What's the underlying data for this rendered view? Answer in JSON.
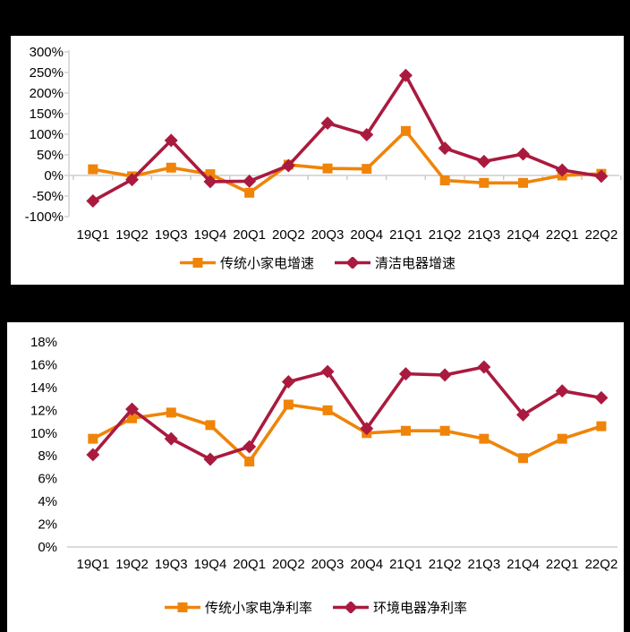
{
  "colors": {
    "background": "#000000",
    "panel": "#FFFFFF",
    "axis_line": "#D6D4D4",
    "tick_line": "#C9C7C7",
    "text": "#000000",
    "orange_series": "#EF8409",
    "crimson_series": "#AA1A3F"
  },
  "chart_data": [
    {
      "id": "growth-chart",
      "type": "line",
      "title": "",
      "categories": [
        "19Q1",
        "19Q2",
        "19Q3",
        "19Q4",
        "20Q1",
        "20Q2",
        "20Q3",
        "20Q4",
        "21Q1",
        "21Q2",
        "21Q3",
        "21Q4",
        "22Q1",
        "22Q2"
      ],
      "y_tick_labels": [
        "300%",
        "250%",
        "200%",
        "150%",
        "100%",
        "50%",
        "0%",
        "-50%",
        "-100%"
      ],
      "ylim": [
        -100,
        300
      ],
      "y_tick_step": 50,
      "grid": false,
      "legend_position": "bottom",
      "series": [
        {
          "name": "传统小家电增速",
          "marker": "square",
          "color": "#EF8409",
          "values": [
            15,
            -2,
            19,
            3,
            -42,
            26,
            17,
            16,
            108,
            -12,
            -18,
            -18,
            0,
            4
          ]
        },
        {
          "name": "清洁电器增速",
          "marker": "diamond",
          "color": "#AA1A3F",
          "values": [
            -62,
            -10,
            85,
            -15,
            -14,
            24,
            127,
            99,
            243,
            66,
            34,
            52,
            13,
            -2
          ]
        }
      ]
    },
    {
      "id": "net-margin-chart",
      "type": "line",
      "title": "",
      "categories": [
        "19Q1",
        "19Q2",
        "19Q3",
        "19Q4",
        "20Q1",
        "20Q2",
        "20Q3",
        "20Q4",
        "21Q1",
        "21Q2",
        "21Q3",
        "21Q4",
        "22Q1",
        "22Q2"
      ],
      "y_tick_labels": [
        "18%",
        "16%",
        "14%",
        "12%",
        "10%",
        "8%",
        "6%",
        "4%",
        "2%",
        "0%"
      ],
      "ylim": [
        0,
        18
      ],
      "y_tick_step": 2,
      "grid": false,
      "legend_position": "bottom",
      "series": [
        {
          "name": "传统小家电净利率",
          "marker": "square",
          "color": "#EF8409",
          "values": [
            9.5,
            11.3,
            11.8,
            10.7,
            7.5,
            12.5,
            12.0,
            10.0,
            10.2,
            10.2,
            9.5,
            7.8,
            9.5,
            10.6
          ]
        },
        {
          "name": "环境电器净利率",
          "marker": "diamond",
          "color": "#AA1A3F",
          "values": [
            8.1,
            12.1,
            9.5,
            7.7,
            8.8,
            14.5,
            15.4,
            10.4,
            15.2,
            15.1,
            15.8,
            11.6,
            13.7,
            13.1
          ]
        }
      ]
    }
  ]
}
